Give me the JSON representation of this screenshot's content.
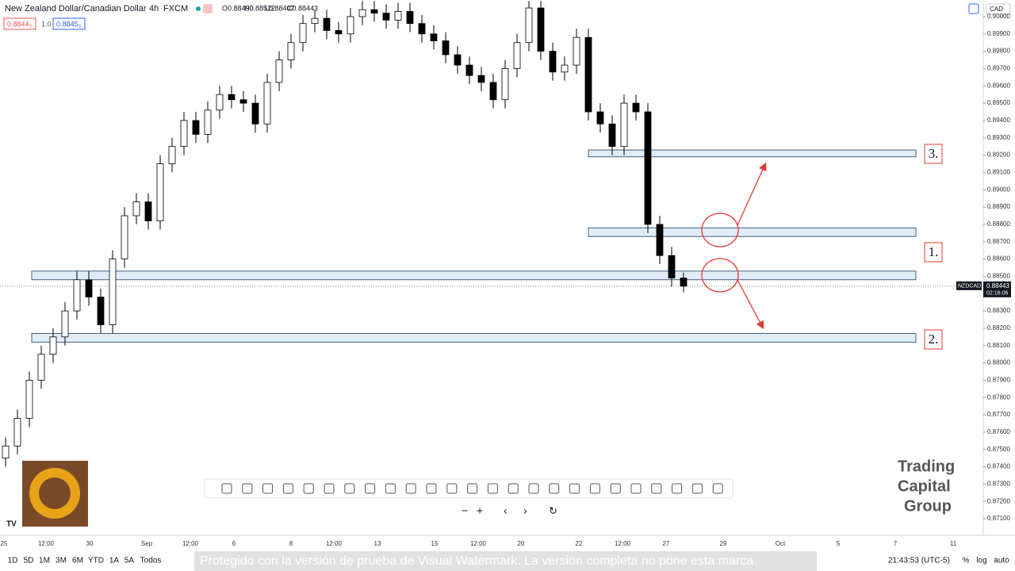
{
  "header": {
    "symbol": "New Zealand Dollar/Canadian Dollar",
    "interval": "4h",
    "source": "FXCM",
    "ohlc": [
      "O0.88490",
      "H0.88522",
      "L0.88407",
      "C0.88443"
    ],
    "bid": "0.8844₃",
    "spread": "1.0",
    "ask": "0.8845₃",
    "currency": "CAD"
  },
  "chart_data": {
    "type": "candlestick",
    "open": [
      0.8745,
      0.8752,
      0.8768,
      0.879,
      0.8805,
      0.8815,
      0.883,
      0.8848,
      0.8838,
      0.8822,
      0.886,
      0.8885,
      0.8893,
      0.8882,
      0.8915,
      0.8925,
      0.894,
      0.8932,
      0.8946,
      0.8955,
      0.8952,
      0.895,
      0.8938,
      0.8962,
      0.8975,
      0.8985,
      0.8996,
      0.8999,
      0.8992,
      0.899,
      0.9,
      0.9004,
      0.9002,
      0.8998,
      0.9003,
      0.8996,
      0.899,
      0.8986,
      0.8978,
      0.8972,
      0.8966,
      0.8962,
      0.8952,
      0.897,
      0.8985,
      0.9005,
      0.898,
      0.8968,
      0.8972,
      0.8988,
      0.8945,
      0.8938,
      0.8925,
      0.895,
      0.8945,
      0.888,
      0.8862,
      0.8849
    ],
    "high": [
      0.8757,
      0.8773,
      0.8795,
      0.881,
      0.882,
      0.8835,
      0.8853,
      0.8853,
      0.8843,
      0.8865,
      0.889,
      0.8898,
      0.8898,
      0.892,
      0.893,
      0.8945,
      0.8945,
      0.8951,
      0.896,
      0.896,
      0.8957,
      0.8955,
      0.8967,
      0.898,
      0.899,
      0.9001,
      0.9004,
      0.9004,
      0.8997,
      0.9005,
      0.9009,
      0.9009,
      0.9007,
      0.9008,
      0.9008,
      0.9001,
      0.8995,
      0.8991,
      0.8983,
      0.8977,
      0.8971,
      0.8967,
      0.8975,
      0.899,
      0.9009,
      0.9009,
      0.8985,
      0.8977,
      0.8993,
      0.8993,
      0.895,
      0.8943,
      0.8955,
      0.8955,
      0.895,
      0.8885,
      0.8867,
      0.88522
    ],
    "low": [
      0.874,
      0.8747,
      0.8763,
      0.8785,
      0.88,
      0.881,
      0.8825,
      0.8833,
      0.8817,
      0.8817,
      0.8855,
      0.888,
      0.8877,
      0.8877,
      0.891,
      0.892,
      0.8927,
      0.8927,
      0.8941,
      0.8947,
      0.8945,
      0.8933,
      0.8933,
      0.8957,
      0.897,
      0.898,
      0.8991,
      0.8987,
      0.8985,
      0.8985,
      0.8995,
      0.8997,
      0.8993,
      0.8993,
      0.8991,
      0.8985,
      0.8981,
      0.8973,
      0.8967,
      0.8961,
      0.8957,
      0.8947,
      0.8947,
      0.8965,
      0.898,
      0.8975,
      0.8963,
      0.8963,
      0.8967,
      0.894,
      0.8933,
      0.892,
      0.892,
      0.894,
      0.8875,
      0.8857,
      0.8844,
      0.88407
    ],
    "close": [
      0.8752,
      0.8768,
      0.879,
      0.8805,
      0.8815,
      0.883,
      0.8848,
      0.8838,
      0.8822,
      0.886,
      0.8885,
      0.8893,
      0.8882,
      0.8915,
      0.8925,
      0.894,
      0.8932,
      0.8946,
      0.8955,
      0.8952,
      0.895,
      0.8938,
      0.8962,
      0.8975,
      0.8985,
      0.8996,
      0.8999,
      0.8992,
      0.899,
      0.9,
      0.9004,
      0.9002,
      0.8998,
      0.9003,
      0.8996,
      0.899,
      0.8986,
      0.8978,
      0.8972,
      0.8966,
      0.8962,
      0.8952,
      0.897,
      0.8985,
      0.9005,
      0.898,
      0.8968,
      0.8972,
      0.8988,
      0.8945,
      0.8938,
      0.8925,
      0.895,
      0.8945,
      0.888,
      0.8862,
      0.8849,
      0.88443
    ],
    "ylim": [
      0.87004,
      0.90096
    ],
    "yticks": [
      {
        "value": 0.9,
        "label": "0.90000"
      },
      {
        "value": 0.899,
        "label": "0.89900"
      },
      {
        "value": 0.898,
        "label": "0.89800"
      },
      {
        "value": 0.897,
        "label": "0.89700"
      },
      {
        "value": 0.896,
        "label": "0.89600"
      },
      {
        "value": 0.895,
        "label": "0.89500"
      },
      {
        "value": 0.894,
        "label": "0.89400"
      },
      {
        "value": 0.893,
        "label": "0.89300"
      },
      {
        "value": 0.892,
        "label": "0.89200"
      },
      {
        "value": 0.891,
        "label": "0.89100"
      },
      {
        "value": 0.89,
        "label": "0.89000"
      },
      {
        "value": 0.889,
        "label": "0.88900"
      },
      {
        "value": 0.888,
        "label": "0.88800"
      },
      {
        "value": 0.887,
        "label": "0.88700"
      },
      {
        "value": 0.886,
        "label": "0.88600"
      },
      {
        "value": 0.885,
        "label": "0.88500"
      },
      {
        "value": 0.884,
        "label": "0.88400"
      },
      {
        "value": 0.883,
        "label": "0.88300"
      },
      {
        "value": 0.882,
        "label": "0.88200"
      },
      {
        "value": 0.881,
        "label": "0.88100"
      },
      {
        "value": 0.88,
        "label": "0.88000"
      },
      {
        "value": 0.879,
        "label": "0.87900"
      },
      {
        "value": 0.878,
        "label": "0.87800"
      },
      {
        "value": 0.877,
        "label": "0.87700"
      },
      {
        "value": 0.876,
        "label": "0.87600"
      },
      {
        "value": 0.875,
        "label": "0.87500"
      },
      {
        "value": 0.874,
        "label": "0.87400"
      },
      {
        "value": 0.873,
        "label": "0.87300"
      },
      {
        "value": 0.872,
        "label": "0.87200"
      },
      {
        "value": 0.871,
        "label": "0.87100"
      }
    ],
    "x_tick_labels": [
      "25",
      "12:00",
      "30",
      "Sep",
      "12:00",
      "6",
      "8",
      "12:00",
      "13",
      "15",
      "12:00",
      "20",
      "22",
      "12:00",
      "27",
      "29",
      "Oct",
      "5",
      "7",
      "11"
    ],
    "last_price": {
      "symbol": "NZDCAD",
      "value": 0.88443,
      "label": "0.88443",
      "countdown": "02:16:06"
    },
    "zones": [
      {
        "label": "3.",
        "top": 0.8923,
        "bottom": 0.8919
      },
      {
        "label": "1.",
        "top": 0.8878,
        "bottom": 0.8873
      },
      {
        "label": "",
        "top": 0.8853,
        "bottom": 0.8848
      },
      {
        "label": "2.",
        "top": 0.8817,
        "bottom": 0.8812
      }
    ]
  },
  "footer": {
    "ranges": [
      "1D",
      "5D",
      "1M",
      "3M",
      "6M",
      "YTD",
      "1A",
      "5A",
      "Todos"
    ],
    "time": "21:43:53 (UTC-5)",
    "options": [
      "%",
      "log",
      "auto"
    ],
    "watermark": "Protegido con la versión de prueba de Visual Watermark. La versión completa no pone esta marca"
  },
  "logo": {
    "line1": "Trading",
    "line2": "Capital",
    "line3": "Group"
  }
}
